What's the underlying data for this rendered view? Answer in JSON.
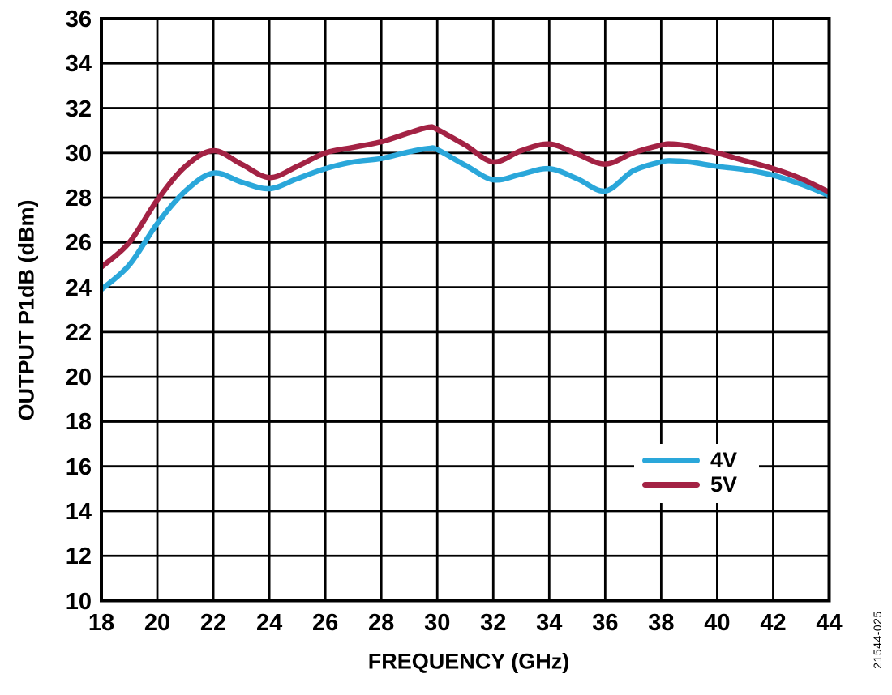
{
  "figure": {
    "id_label": "21544-025",
    "background": "#ffffff",
    "grid_color": "#000000",
    "text_color": "#000000"
  },
  "chart_data": {
    "type": "line",
    "title": "",
    "xlabel": "FREQUENCY (GHz)",
    "ylabel": "OUTPUT P1dB (dBm)",
    "xlim": [
      18,
      44
    ],
    "ylim": [
      10,
      36
    ],
    "xticks": [
      18,
      20,
      22,
      24,
      26,
      28,
      30,
      32,
      34,
      36,
      38,
      40,
      42,
      44
    ],
    "yticks": [
      36,
      34,
      32,
      30,
      28,
      26,
      24,
      22,
      20,
      18,
      16,
      14,
      12,
      10
    ],
    "grid": true,
    "legend_position": "inside-right",
    "x": [
      18,
      19,
      20,
      21,
      22,
      23,
      24,
      25,
      26,
      27,
      28,
      29,
      29.7,
      30,
      31,
      32,
      33,
      34,
      35,
      36,
      37,
      38,
      38.4,
      39,
      40,
      41,
      42,
      43,
      44
    ],
    "series": [
      {
        "name": "4V",
        "color": "#2AA7DA",
        "values": [
          23.9,
          25.0,
          26.85,
          28.3,
          29.1,
          28.7,
          28.4,
          28.85,
          29.3,
          29.6,
          29.75,
          30.05,
          30.2,
          30.15,
          29.45,
          28.8,
          29.05,
          29.3,
          28.85,
          28.3,
          29.2,
          29.6,
          29.65,
          29.6,
          29.4,
          29.25,
          29.0,
          28.6,
          28.1
        ]
      },
      {
        "name": "5V",
        "color": "#A32244",
        "values": [
          24.9,
          26.0,
          27.9,
          29.4,
          30.1,
          29.5,
          28.9,
          29.4,
          30.0,
          30.25,
          30.5,
          30.9,
          31.15,
          31.05,
          30.35,
          29.6,
          30.1,
          30.4,
          29.95,
          29.5,
          30.0,
          30.35,
          30.4,
          30.3,
          30.0,
          29.65,
          29.3,
          28.85,
          28.25
        ]
      }
    ]
  }
}
